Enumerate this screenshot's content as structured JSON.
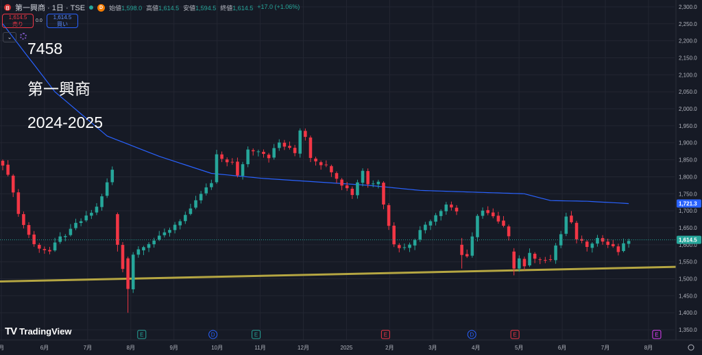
{
  "header": {
    "logo_text": "日",
    "symbol": "第一興商 · 1日 · TSE",
    "delay_badge": "D",
    "open_label": "始値",
    "open_value": "1,598.0",
    "high_label": "高値",
    "high_value": "1,614.5",
    "low_label": "安値",
    "low_value": "1,594.5",
    "close_label": "終値",
    "close_value": "1,614.5",
    "change": "+17.0 (+1.06%)"
  },
  "trade": {
    "sell_price": "1,614.5",
    "sell_label": "売り",
    "spread": "0.0",
    "buy_price": "1,614.5",
    "buy_label": "買い"
  },
  "annotations": {
    "code": "7458",
    "name": "第一興商",
    "period": "2024-2025"
  },
  "branding": {
    "name": "TradingView"
  },
  "colors": {
    "background": "#161a25",
    "up": "#26a69a",
    "down": "#f23645",
    "ma": "#2962ff",
    "trendline": "#b5a642",
    "grid": "#232632"
  },
  "chart_data": {
    "type": "candlestick",
    "x_labels": [
      "月",
      "6月",
      "7月",
      "8月",
      "9月",
      "10月",
      "11月",
      "12月",
      "2025",
      "2月",
      "3月",
      "4月",
      "5月",
      "6月",
      "7月",
      "8月"
    ],
    "y_ticks": [
      1350,
      1400,
      1450,
      1500,
      1550,
      1600,
      1650,
      1700,
      1750,
      1800,
      1850,
      1900,
      1950,
      2000,
      2050,
      2100,
      2150,
      2200,
      2250,
      2300
    ],
    "y_tick_labels": [
      "1,350.0",
      "1,400.0",
      "1,450.0",
      "1,500.0",
      "1,550.0",
      "1,600.0",
      "1,650.0",
      "1,700.0",
      "1,750.0",
      "1,800.0",
      "1,850.0",
      "1,900.0",
      "1,950.0",
      "2,000.0",
      "2,050.0",
      "2,100.0",
      "2,150.0",
      "2,200.0",
      "2,250.0",
      "2,300.0"
    ],
    "ylim": [
      1320,
      2320
    ],
    "last_price": 1614.5,
    "last_price_label": "1,614.5",
    "ma_last": 1721.3,
    "ma_label": "1,721.3",
    "events": [
      {
        "label": "E",
        "color": "#26a69a",
        "month": "8月"
      },
      {
        "label": "D",
        "color": "#2962ff",
        "month": "10月"
      },
      {
        "label": "E",
        "color": "#26a69a",
        "month": "11月"
      },
      {
        "label": "E",
        "color": "#f23645",
        "month": "2月"
      },
      {
        "label": "D",
        "color": "#2962ff",
        "month": "4月"
      },
      {
        "label": "E",
        "color": "#f23645",
        "month": "5月"
      },
      {
        "label": "E",
        "color": "#e040fb",
        "month": "8月"
      }
    ],
    "path": [
      [
        0,
        1840
      ],
      [
        2,
        1760
      ],
      [
        3,
        1690
      ],
      [
        5,
        1630
      ],
      [
        6,
        1600
      ],
      [
        9,
        1580
      ],
      [
        11,
        1620
      ],
      [
        13,
        1640
      ],
      [
        14,
        1660
      ],
      [
        16,
        1680
      ],
      [
        18,
        1710
      ],
      [
        20,
        1780
      ],
      [
        21,
        1820
      ],
      [
        22,
        1500
      ],
      [
        24,
        1560
      ],
      [
        27,
        1600
      ],
      [
        30,
        1620
      ],
      [
        33,
        1660
      ],
      [
        36,
        1700
      ],
      [
        38,
        1750
      ],
      [
        40,
        1780
      ],
      [
        41,
        1860
      ],
      [
        44,
        1840
      ],
      [
        45,
        1800
      ],
      [
        47,
        1880
      ],
      [
        49,
        1880
      ],
      [
        51,
        1860
      ],
      [
        53,
        1900
      ],
      [
        55,
        1880
      ],
      [
        56,
        1870
      ],
      [
        57,
        1940
      ],
      [
        58,
        1920
      ],
      [
        59,
        1860
      ],
      [
        61,
        1840
      ],
      [
        63,
        1820
      ],
      [
        65,
        1780
      ],
      [
        67,
        1750
      ],
      [
        69,
        1820
      ],
      [
        70,
        1780
      ],
      [
        71,
        1780
      ],
      [
        72,
        1790
      ],
      [
        74,
        1660
      ],
      [
        75,
        1600
      ],
      [
        77,
        1590
      ],
      [
        79,
        1620
      ],
      [
        81,
        1660
      ],
      [
        83,
        1690
      ],
      [
        85,
        1720
      ],
      [
        87,
        1700
      ],
      [
        88,
        1620
      ],
      [
        89,
        1560
      ],
      [
        90,
        1620
      ],
      [
        91,
        1690
      ],
      [
        92,
        1700
      ],
      [
        94,
        1680
      ],
      [
        96,
        1650
      ],
      [
        97,
        1630
      ],
      [
        98,
        1600
      ],
      [
        99,
        1560
      ],
      [
        100,
        1540
      ],
      [
        101,
        1570
      ],
      [
        103,
        1560
      ],
      [
        105,
        1550
      ],
      [
        106,
        1600
      ],
      [
        107,
        1630
      ],
      [
        108,
        1680
      ],
      [
        109,
        1660
      ],
      [
        110,
        1620
      ],
      [
        112,
        1600
      ],
      [
        114,
        1620
      ],
      [
        116,
        1600
      ],
      [
        118,
        1580
      ],
      [
        120,
        1614.5
      ]
    ],
    "dip_bars": [
      {
        "i": 22,
        "open": 1690,
        "close": 1600,
        "high": 1695,
        "low": 1580
      },
      {
        "i": 24,
        "open": 1560,
        "close": 1470,
        "high": 1565,
        "low": 1400
      },
      {
        "i": 88,
        "open": 1600,
        "close": 1570,
        "high": 1620,
        "low": 1530
      },
      {
        "i": 98,
        "open": 1580,
        "close": 1530,
        "high": 1590,
        "low": 1510
      }
    ],
    "ma_points": [
      [
        0,
        2250
      ],
      [
        10,
        2050
      ],
      [
        20,
        1920
      ],
      [
        30,
        1860
      ],
      [
        40,
        1810
      ],
      [
        50,
        1795
      ],
      [
        60,
        1785
      ],
      [
        70,
        1775
      ],
      [
        80,
        1760
      ],
      [
        90,
        1755
      ],
      [
        100,
        1750
      ],
      [
        105,
        1730
      ],
      [
        112,
        1728
      ],
      [
        120,
        1721.3
      ]
    ],
    "trendline": [
      [
        0,
        1492
      ],
      [
        128,
        1535
      ]
    ]
  }
}
